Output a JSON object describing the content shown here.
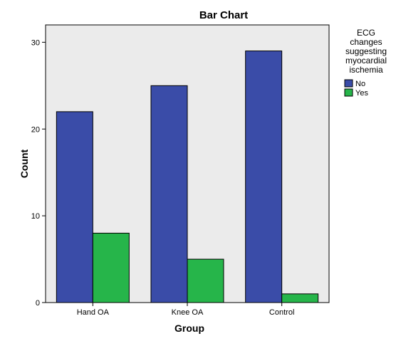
{
  "chart_data": {
    "type": "bar",
    "title": "Bar Chart",
    "xlabel": "Group",
    "ylabel": "Count",
    "categories": [
      "Hand OA",
      "Knee OA",
      "Control"
    ],
    "series": [
      {
        "name": "No",
        "values": [
          22,
          25,
          29
        ],
        "color": "#3a4ca8"
      },
      {
        "name": "Yes",
        "values": [
          8,
          5,
          1
        ],
        "color": "#26b54a"
      }
    ],
    "ylim": [
      0,
      32
    ],
    "yticks": [
      0,
      10,
      20,
      30
    ],
    "grid": false,
    "plot_background": "#ebebeb",
    "legend": {
      "title_lines": [
        "ECG",
        "changes",
        "suggesting",
        "myocardial",
        "ischemia"
      ],
      "placement": "right-top"
    }
  }
}
